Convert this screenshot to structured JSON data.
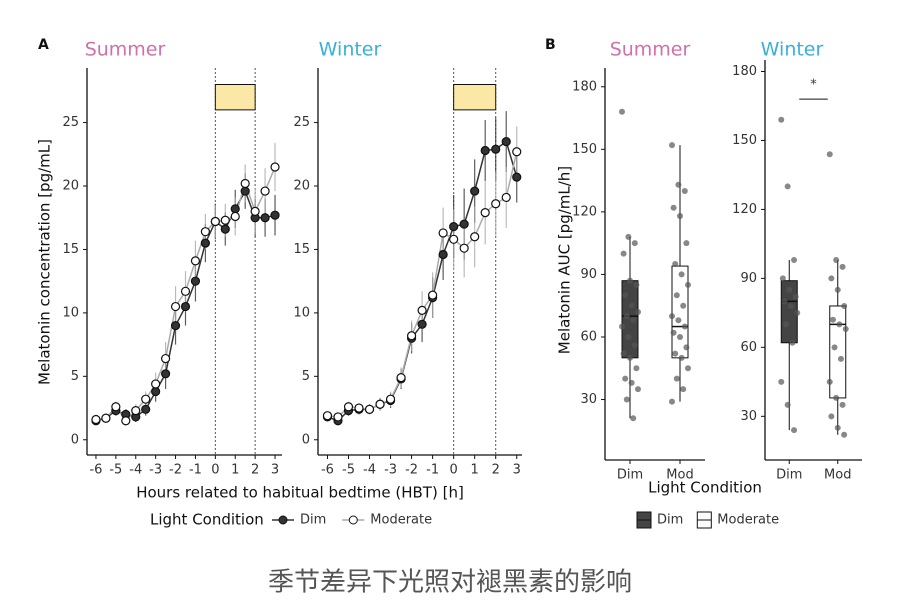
{
  "panel_a": {
    "label": "A",
    "xlabel": "Hours related to habitual bedtime (HBT) [h]",
    "legend_title": "Light Condition"
  },
  "panel_b": {
    "label": "B",
    "xlabel": "Light Condition",
    "legend": [
      "Dim",
      "Moderate"
    ]
  },
  "caption": "季节差异下光照对褪黑素的影响",
  "chart_data": [
    {
      "type": "line",
      "title": "Summer",
      "title_color": "#d070a8",
      "ylabel": "Melatonin concentration [pg/mL]",
      "x": [
        -6,
        -5.5,
        -5,
        -4.5,
        -4,
        -3.5,
        -3,
        -2.5,
        -2,
        -1.5,
        -1,
        -0.5,
        0,
        0.5,
        1,
        1.5,
        2,
        2.5,
        3
      ],
      "xlim": [
        -6.45,
        3.35
      ],
      "xticks": [
        -6,
        -5,
        -4,
        -3,
        -2,
        -1,
        0,
        1,
        2,
        3
      ],
      "ylim": [
        -1.2,
        29.3
      ],
      "yticks": [
        0,
        5,
        10,
        15,
        20,
        25
      ],
      "vlines": [
        0,
        2
      ],
      "sleep_box": {
        "xlim": [
          0,
          2
        ],
        "ylim": [
          26,
          28
        ],
        "color": "#fbe8a6"
      },
      "series": [
        {
          "name": "Dim",
          "color": "#333333",
          "marker_fill": "#333333",
          "values": [
            1.5,
            1.7,
            2.3,
            2.0,
            1.8,
            2.4,
            3.8,
            5.2,
            9.0,
            10.5,
            12.5,
            15.5,
            17.2,
            16.6,
            18.2,
            19.6,
            17.5,
            17.5,
            17.7
          ],
          "errors": [
            0.3,
            0.3,
            0.4,
            0.4,
            0.4,
            0.5,
            0.8,
            1.2,
            1.5,
            1.5,
            1.6,
            1.5,
            1.4,
            1.3,
            1.5,
            1.4,
            1.5,
            1.5,
            1.6
          ]
        },
        {
          "name": "Moderate",
          "color": "#aaaaaa",
          "marker_fill": "#ffffff",
          "values": [
            1.6,
            1.7,
            2.6,
            1.5,
            2.3,
            3.2,
            4.4,
            6.4,
            10.5,
            11.7,
            14.1,
            16.4,
            17.2,
            17.3,
            17.6,
            20.2,
            18.0,
            19.6,
            21.5
          ],
          "errors": [
            0.3,
            0.3,
            0.4,
            0.4,
            0.5,
            0.6,
            0.9,
            1.3,
            1.6,
            1.6,
            1.6,
            1.4,
            1.3,
            1.3,
            1.5,
            1.5,
            1.8,
            1.8,
            1.9
          ]
        }
      ]
    },
    {
      "type": "line",
      "title": "Winter",
      "title_color": "#3ab0d8",
      "x": [
        -6,
        -5.5,
        -5,
        -4.5,
        -4,
        -3.5,
        -3,
        -2.5,
        -2,
        -1.5,
        -1,
        -0.5,
        0,
        0.5,
        1,
        1.5,
        2,
        2.5,
        3
      ],
      "xlim": [
        -6.45,
        3.25
      ],
      "xticks": [
        -6,
        -5,
        -4,
        -3,
        -2,
        -1,
        0,
        1,
        2,
        3
      ],
      "ylim": [
        -1.2,
        29.3
      ],
      "yticks": [
        0,
        5,
        10,
        15,
        20,
        25
      ],
      "vlines": [
        0,
        2
      ],
      "sleep_box": {
        "xlim": [
          0,
          2
        ],
        "ylim": [
          26,
          28
        ],
        "color": "#fbe8a6"
      },
      "series": [
        {
          "name": "Dim",
          "color": "#333333",
          "marker_fill": "#333333",
          "values": [
            1.8,
            1.5,
            2.3,
            2.4,
            2.4,
            2.8,
            3.1,
            4.8,
            8.0,
            9.1,
            11.2,
            14.6,
            16.8,
            17.0,
            19.6,
            22.8,
            22.9,
            23.5,
            20.7
          ],
          "errors": [
            0.3,
            0.3,
            0.4,
            0.4,
            0.4,
            0.5,
            0.6,
            0.8,
            1.2,
            1.4,
            1.6,
            2.0,
            2.5,
            2.8,
            2.5,
            2.4,
            2.5,
            2.4,
            2.0
          ]
        },
        {
          "name": "Moderate",
          "color": "#aaaaaa",
          "marker_fill": "#ffffff",
          "values": [
            1.9,
            1.8,
            2.6,
            2.5,
            2.4,
            2.8,
            3.2,
            4.9,
            8.2,
            10.2,
            11.4,
            16.3,
            15.8,
            15.1,
            16.0,
            17.9,
            18.6,
            19.1,
            22.7
          ],
          "errors": [
            0.3,
            0.3,
            0.4,
            0.4,
            0.4,
            0.5,
            0.6,
            0.8,
            1.2,
            1.5,
            1.8,
            2.0,
            2.4,
            2.3,
            2.4,
            2.5,
            2.5,
            2.4,
            2.0
          ]
        }
      ]
    },
    {
      "type": "box",
      "title": "Summer",
      "title_color": "#d070a8",
      "ylabel": "Melatonin AUC [pg/mL/h]",
      "categories": [
        "Dim",
        "Mod"
      ],
      "colors": [
        "#444444",
        "#ffffff"
      ],
      "ylim": [
        1,
        189
      ],
      "yticks": [
        30,
        60,
        90,
        120,
        150,
        180
      ],
      "boxes": [
        {
          "min": 21,
          "q1": 50,
          "median": 70,
          "q3": 87,
          "max": 108,
          "points": [
            168,
            108,
            105,
            100,
            87,
            85,
            80,
            75,
            72,
            70,
            68,
            65,
            60,
            56,
            52,
            50,
            45,
            40,
            38,
            35,
            30,
            21
          ]
        },
        {
          "min": 29,
          "q1": 50,
          "median": 65,
          "q3": 94,
          "max": 152,
          "points": [
            152,
            133,
            130,
            122,
            118,
            105,
            95,
            90,
            85,
            80,
            75,
            70,
            68,
            65,
            62,
            60,
            55,
            52,
            50,
            45,
            40,
            35,
            29
          ]
        }
      ]
    },
    {
      "type": "box",
      "title": "Winter",
      "title_color": "#3ab0d8",
      "categories": [
        "Dim",
        "Mod"
      ],
      "colors": [
        "#444444",
        "#ffffff"
      ],
      "ylim": [
        11,
        185
      ],
      "yticks": [
        30,
        60,
        90,
        120,
        150,
        180
      ],
      "annotation": {
        "text": "*",
        "y": 168
      },
      "boxes": [
        {
          "min": 24,
          "q1": 62,
          "median": 80,
          "q3": 89,
          "max": 98,
          "points": [
            159,
            130,
            98,
            90,
            85,
            82,
            80,
            78,
            75,
            70,
            62,
            45,
            35,
            24
          ]
        },
        {
          "min": 22,
          "q1": 38,
          "median": 70,
          "q3": 78,
          "max": 98,
          "points": [
            144,
            98,
            95,
            90,
            85,
            78,
            72,
            70,
            68,
            60,
            55,
            45,
            38,
            35,
            30,
            25,
            22
          ]
        }
      ]
    }
  ]
}
